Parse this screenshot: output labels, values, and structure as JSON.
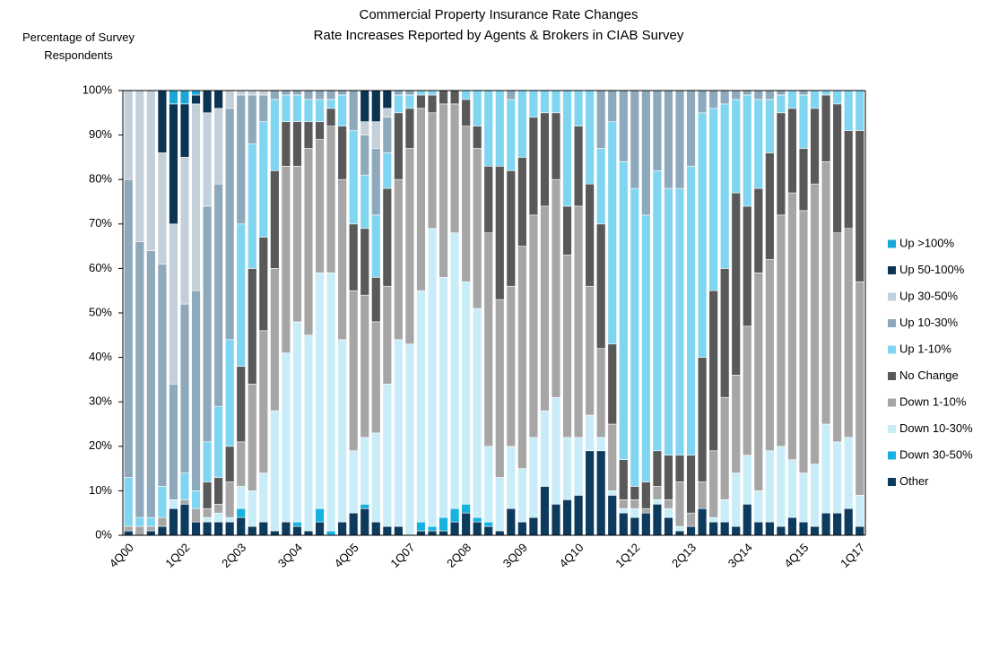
{
  "chart_data": {
    "type": "stacked_bar",
    "title": "Commercial Property Insurance Rate Changes",
    "subtitle": "Rate Increases Reported by Agents & Brokers in CIAB Survey",
    "y_label": "Percentage of Survey Respondents",
    "categories": [
      "4Q00",
      null,
      null,
      null,
      null,
      "1Q02",
      null,
      null,
      null,
      null,
      "2Q03",
      null,
      null,
      null,
      null,
      "3Q04",
      null,
      null,
      null,
      null,
      "4Q05",
      null,
      null,
      null,
      null,
      "1Q07",
      null,
      null,
      null,
      null,
      "2Q08",
      null,
      null,
      null,
      null,
      "3Q09",
      null,
      null,
      null,
      null,
      "4Q10",
      null,
      null,
      null,
      null,
      "1Q12",
      null,
      null,
      null,
      null,
      "2Q13",
      null,
      null,
      null,
      null,
      "3Q14",
      null,
      null,
      null,
      null,
      "4Q15",
      null,
      null,
      null,
      null,
      "1Q17"
    ],
    "ylim": [
      0,
      100
    ],
    "yticks": [
      {
        "value": 0,
        "label": "0%"
      },
      {
        "value": 10,
        "label": "10%"
      },
      {
        "value": 20,
        "label": "20%"
      },
      {
        "value": 30,
        "label": "30%"
      },
      {
        "value": 40,
        "label": "40%"
      },
      {
        "value": 50,
        "label": "50%"
      },
      {
        "value": 60,
        "label": "60%"
      },
      {
        "value": 70,
        "label": "70%"
      },
      {
        "value": 80,
        "label": "80%"
      },
      {
        "value": 90,
        "label": "90%"
      },
      {
        "value": 100,
        "label": "100%"
      }
    ],
    "legend": "right",
    "series": [
      {
        "name": "Other",
        "color": "#0d3b5e",
        "values": [
          1,
          0,
          1,
          2,
          6,
          7,
          3,
          3,
          3,
          3,
          4,
          2,
          3,
          1,
          3,
          2,
          1,
          3,
          0,
          3,
          5,
          6,
          3,
          2,
          2,
          0,
          1,
          1,
          1,
          3,
          5,
          3,
          2,
          1,
          6,
          3,
          4,
          11,
          7,
          8,
          9,
          19,
          19,
          9,
          5,
          4,
          5,
          7,
          4,
          1,
          2,
          6,
          3,
          3,
          2,
          7,
          3,
          3,
          2,
          4,
          3,
          2,
          5,
          5,
          6,
          2
        ]
      },
      {
        "name": "Down 30-50%",
        "color": "#16b2e0",
        "values": [
          0,
          0,
          0,
          0,
          0,
          0,
          0,
          0,
          0,
          0,
          2,
          0,
          0,
          0,
          0,
          1,
          0,
          3,
          1,
          0,
          0,
          1,
          0,
          0,
          0,
          0,
          2,
          1,
          3,
          3,
          2,
          1,
          1,
          0,
          0,
          0,
          0,
          0,
          0,
          0,
          0,
          0,
          0,
          0,
          0,
          0,
          0,
          0,
          0,
          0,
          0,
          0,
          0,
          0,
          0,
          0,
          0,
          0,
          0,
          0,
          0,
          0,
          0,
          0,
          0,
          0
        ]
      },
      {
        "name": "Down 10-30%",
        "color": "#c9edf8",
        "values": [
          0,
          0,
          0,
          0,
          2,
          0,
          0,
          1,
          2,
          1,
          5,
          8,
          11,
          27,
          38,
          45,
          44,
          53,
          58,
          41,
          14,
          15,
          20,
          32,
          42,
          43,
          52,
          67,
          54,
          62,
          50,
          47,
          17,
          12,
          14,
          12,
          18,
          17,
          24,
          14,
          13,
          8,
          3,
          1,
          1,
          2,
          0,
          1,
          2,
          1,
          0,
          0,
          1,
          5,
          12,
          11,
          7,
          16,
          18,
          13,
          11,
          14,
          20,
          16,
          16,
          7
        ]
      },
      {
        "name": "Down 1-10%",
        "color": "#a6a6a6",
        "values": [
          1,
          2,
          1,
          2,
          0,
          1,
          3,
          2,
          2,
          8,
          10,
          24,
          32,
          32,
          42,
          35,
          42,
          30,
          33,
          36,
          36,
          32,
          25,
          22,
          36,
          44,
          41,
          26,
          39,
          29,
          35,
          36,
          48,
          40,
          36,
          50,
          50,
          46,
          49,
          41,
          52,
          29,
          20,
          15,
          2,
          2,
          1,
          3,
          2,
          10,
          3,
          6,
          15,
          23,
          22,
          29,
          49,
          43,
          52,
          60,
          59,
          63,
          59,
          47,
          47,
          48
        ]
      },
      {
        "name": "No Change",
        "color": "#595959",
        "values": [
          0,
          0,
          0,
          0,
          0,
          0,
          0,
          6,
          6,
          8,
          17,
          26,
          21,
          22,
          10,
          10,
          6,
          4,
          4,
          12,
          15,
          15,
          10,
          22,
          15,
          9,
          3,
          4,
          3,
          3,
          6,
          5,
          15,
          30,
          26,
          20,
          22,
          21,
          15,
          11,
          18,
          23,
          28,
          18,
          9,
          3,
          6,
          8,
          10,
          6,
          13,
          28,
          36,
          29,
          41,
          27,
          19,
          24,
          23,
          19,
          14,
          17,
          15,
          29,
          22,
          34
        ]
      },
      {
        "name": "Up 1-10%",
        "color": "#80d5f1",
        "values": [
          11,
          2,
          2,
          7,
          0,
          6,
          4,
          9,
          16,
          24,
          32,
          28,
          26,
          16,
          6,
          6,
          5,
          5,
          2,
          7,
          21,
          12,
          14,
          8,
          4,
          3,
          1,
          1,
          0,
          0,
          2,
          8,
          17,
          17,
          16,
          15,
          6,
          5,
          5,
          26,
          8,
          21,
          17,
          50,
          67,
          67,
          60,
          63,
          60,
          60,
          65,
          55,
          41,
          37,
          21,
          25,
          20,
          12,
          4,
          4,
          12,
          4,
          1,
          3,
          9,
          9
        ]
      },
      {
        "name": "Up 10-30%",
        "color": "#8ea9bc",
        "values": [
          67,
          62,
          60,
          50,
          26,
          38,
          45,
          53,
          50,
          52,
          29,
          11,
          6,
          2,
          1,
          1,
          2,
          2,
          2,
          1,
          9,
          9,
          15,
          8,
          1,
          1,
          0,
          0,
          0,
          0,
          0,
          0,
          0,
          0,
          2,
          0,
          0,
          0,
          0,
          0,
          0,
          0,
          13,
          7,
          16,
          22,
          28,
          18,
          22,
          22,
          17,
          5,
          4,
          3,
          2,
          1,
          2,
          2,
          1,
          0,
          1,
          0,
          0,
          0,
          0,
          0
        ]
      },
      {
        "name": "Up 30-50%",
        "color": "#c3d0da",
        "values": [
          20,
          34,
          36,
          25,
          36,
          33,
          42,
          21,
          17,
          4,
          1,
          1,
          1,
          0,
          0,
          0,
          0,
          0,
          0,
          0,
          0,
          3,
          6,
          2,
          0,
          0,
          0,
          0,
          0,
          0,
          0,
          0,
          0,
          0,
          0,
          0,
          0,
          0,
          0,
          0,
          0,
          0,
          0,
          0,
          0,
          0,
          0,
          0,
          0,
          0,
          0,
          0,
          0,
          0,
          0,
          0,
          0,
          0,
          0,
          0,
          0,
          0,
          0,
          0,
          0,
          0
        ]
      },
      {
        "name": "Up 50-100%",
        "color": "#0b3352",
        "values": [
          0,
          0,
          0,
          14,
          27,
          12,
          2,
          5,
          4,
          0,
          0,
          0,
          0,
          0,
          0,
          0,
          0,
          0,
          0,
          0,
          0,
          7,
          7,
          4,
          0,
          0,
          0,
          0,
          0,
          0,
          0,
          0,
          0,
          0,
          0,
          0,
          0,
          0,
          0,
          0,
          0,
          0,
          0,
          0,
          0,
          0,
          0,
          0,
          0,
          0,
          0,
          0,
          0,
          0,
          0,
          0,
          0,
          0,
          0,
          0,
          0,
          0,
          0,
          0,
          0,
          0
        ]
      },
      {
        "name": "Up >100%",
        "color": "#1aa7d6",
        "values": [
          0,
          0,
          0,
          0,
          3,
          3,
          1,
          0,
          0,
          0,
          0,
          0,
          0,
          0,
          0,
          0,
          0,
          0,
          0,
          0,
          0,
          0,
          0,
          0,
          0,
          0,
          0,
          0,
          0,
          0,
          0,
          0,
          0,
          0,
          0,
          0,
          0,
          0,
          0,
          0,
          0,
          0,
          0,
          0,
          0,
          0,
          0,
          0,
          0,
          0,
          0,
          0,
          0,
          0,
          0,
          0,
          0,
          0,
          0,
          0,
          0,
          0,
          0,
          0,
          0,
          0
        ]
      }
    ]
  }
}
